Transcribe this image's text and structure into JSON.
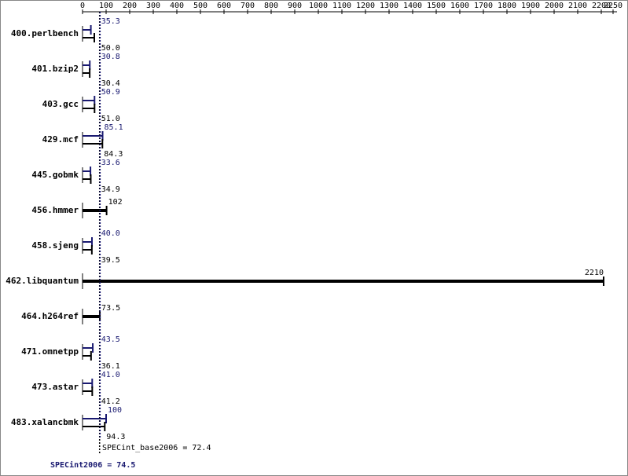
{
  "chart_data": {
    "type": "bar",
    "orientation": "horizontal",
    "categories": [
      "400.perlbench",
      "401.bzip2",
      "403.gcc",
      "429.mcf",
      "445.gobmk",
      "456.hmmer",
      "458.sjeng",
      "462.libquantum",
      "464.h264ref",
      "471.omnetpp",
      "473.astar",
      "483.xalancbmk"
    ],
    "series": [
      {
        "color": "#191970",
        "values": [
          35.3,
          30.8,
          50.9,
          85.1,
          33.6,
          null,
          40.0,
          null,
          null,
          43.5,
          41.0,
          100
        ],
        "value_labels": [
          "35.3",
          "30.8",
          "50.9",
          "85.1",
          "33.6",
          null,
          "40.0",
          null,
          null,
          "43.5",
          "41.0",
          "100"
        ]
      },
      {
        "color": "#000000",
        "values": [
          50.0,
          30.4,
          51.0,
          84.3,
          34.9,
          102,
          39.5,
          2210,
          73.5,
          36.1,
          41.2,
          94.3
        ],
        "value_labels": [
          "50.0",
          "30.4",
          "51.0",
          "84.3",
          "34.9",
          "102",
          "39.5",
          "2210",
          "73.5",
          "36.1",
          "41.2",
          "94.3"
        ]
      }
    ],
    "xlim": [
      0,
      2250
    ],
    "xticks": [
      0,
      100,
      200,
      300,
      400,
      500,
      600,
      700,
      800,
      900,
      1000,
      1100,
      1200,
      1300,
      1400,
      1500,
      1600,
      1700,
      1800,
      1900,
      2000,
      2100,
      2200,
      2250
    ],
    "summary": [
      {
        "value": 72.4,
        "label": "SPECint_base2006 = 72.4",
        "color": "#000000"
      },
      {
        "value": 74.5,
        "label": "SPECint2006 = 74.5",
        "color": "#191970"
      }
    ]
  }
}
